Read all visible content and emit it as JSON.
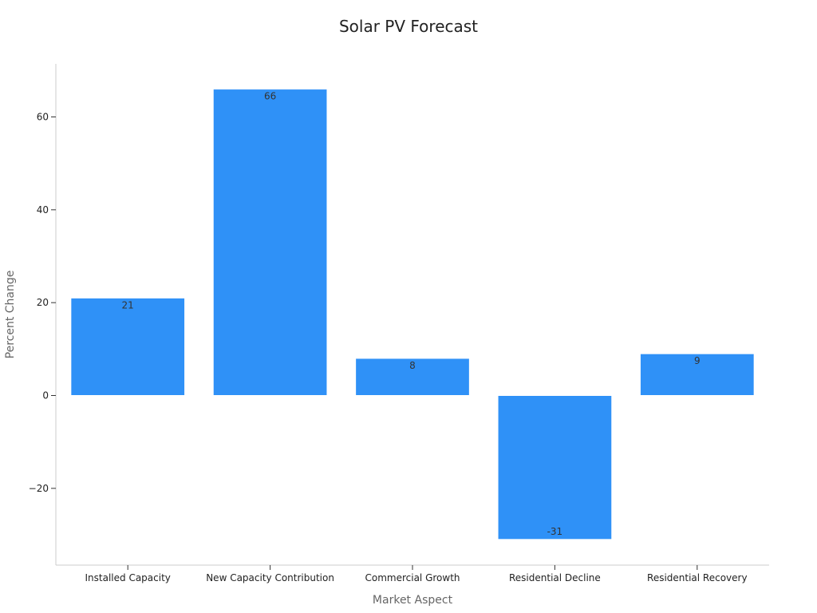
{
  "chart_data": {
    "type": "bar",
    "title": "Solar PV Forecast",
    "xlabel": "Market Aspect",
    "ylabel": "Percent Change",
    "categories": [
      "Installed Capacity",
      "New Capacity Contribution",
      "Commercial Growth",
      "Residential Decline",
      "Residential Recovery"
    ],
    "values": [
      21,
      66,
      8,
      -31,
      9
    ],
    "ylim": [
      -37,
      71
    ],
    "yticks": [
      -20,
      0,
      20,
      40,
      60
    ],
    "ytick_labels": [
      "−20",
      "0",
      "20",
      "40",
      "60"
    ],
    "grid": false,
    "legend": "none",
    "bar_color": "#2F91F7"
  }
}
